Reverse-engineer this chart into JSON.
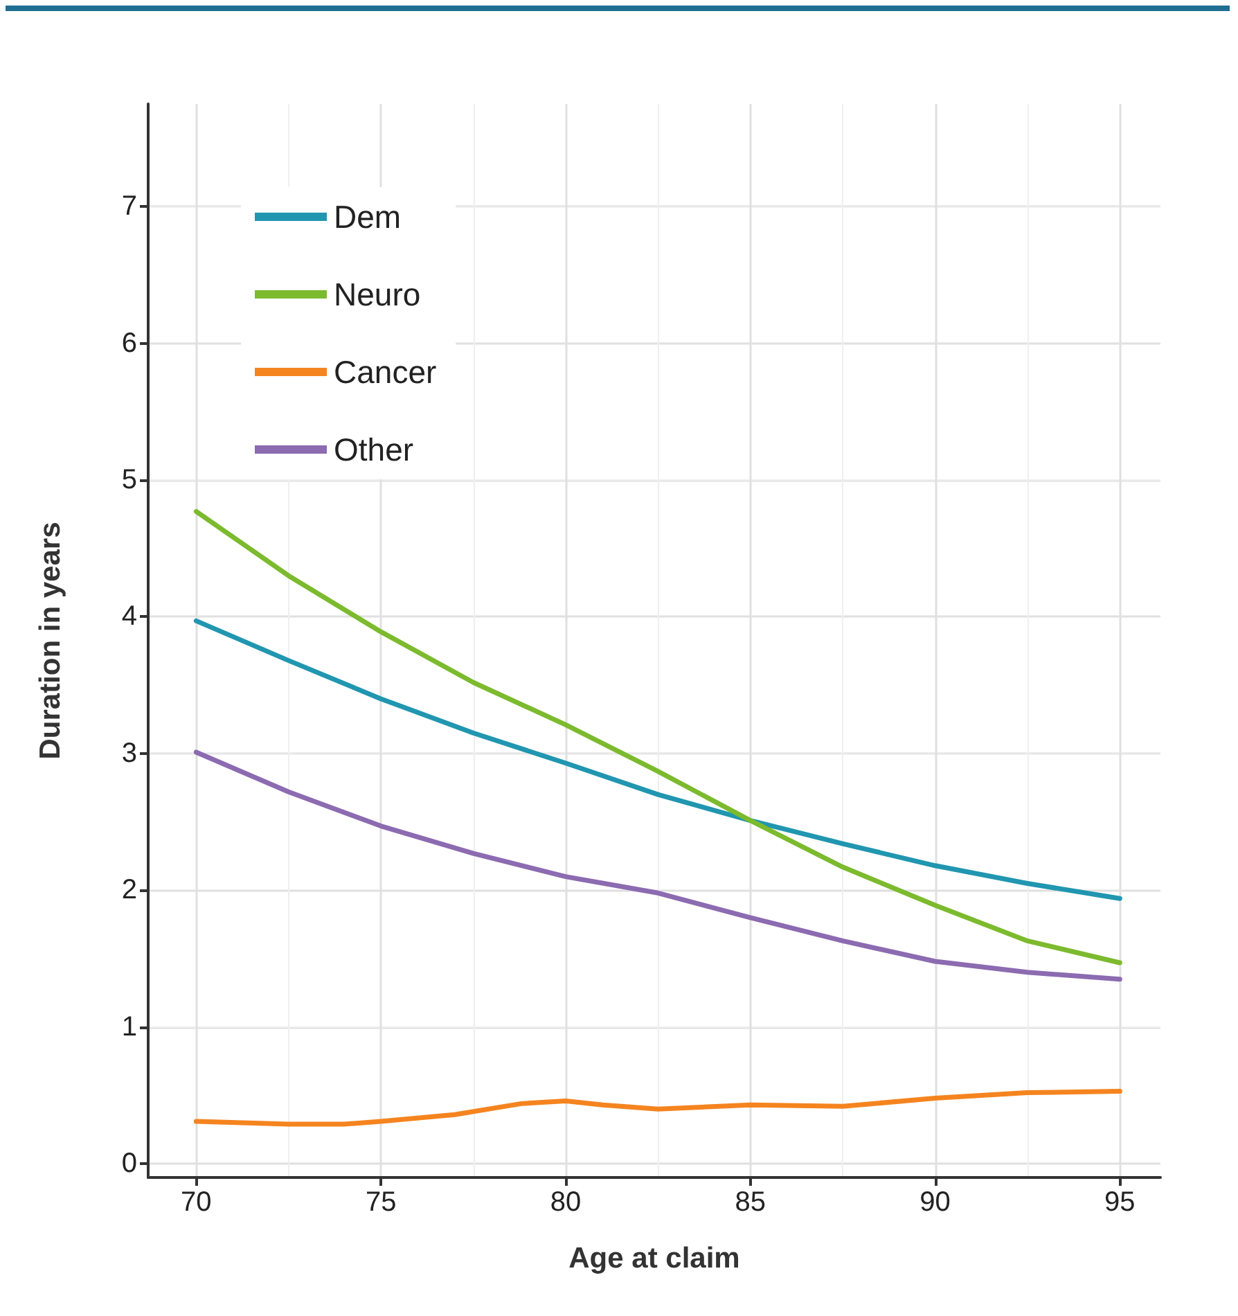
{
  "chart_data": {
    "type": "line",
    "xlabel": "Age at claim",
    "ylabel": "Duration in years",
    "x": [
      70,
      72.5,
      75,
      77.5,
      80,
      82.5,
      85,
      87.5,
      90,
      92.5,
      95
    ],
    "series": [
      {
        "name": "Dem",
        "color": "#2196b0",
        "values": [
          3.97,
          3.68,
          3.4,
          3.15,
          2.93,
          2.7,
          2.51,
          2.34,
          2.18,
          2.05,
          1.94
        ]
      },
      {
        "name": "Neuro",
        "color": "#7cba2e",
        "values": [
          4.77,
          4.3,
          3.89,
          3.52,
          3.21,
          2.87,
          2.51,
          2.17,
          1.89,
          1.63,
          1.47
        ]
      },
      {
        "name": "Cancer",
        "color": "#f5841f",
        "x": [
          70,
          72.5,
          74,
          75,
          77,
          78.8,
          80,
          81,
          82.5,
          85,
          87.5,
          90,
          92.5,
          95
        ],
        "values": [
          0.31,
          0.29,
          0.29,
          0.31,
          0.36,
          0.44,
          0.46,
          0.43,
          0.4,
          0.43,
          0.42,
          0.48,
          0.52,
          0.53
        ]
      },
      {
        "name": "Other",
        "color": "#8c6bb1",
        "values": [
          3.01,
          2.72,
          2.47,
          2.27,
          2.1,
          1.98,
          1.8,
          1.63,
          1.48,
          1.4,
          1.35
        ]
      }
    ],
    "xlim": [
      68.7,
      96.1
    ],
    "xticks": [
      70,
      75,
      80,
      85,
      90,
      95
    ],
    "ylim": [
      -0.1,
      7.75
    ],
    "yticks": [
      0,
      1,
      2,
      3,
      4,
      5,
      6,
      7
    ],
    "grid": true,
    "legend": "top left",
    "marker": "none",
    "line_style": "solid"
  }
}
